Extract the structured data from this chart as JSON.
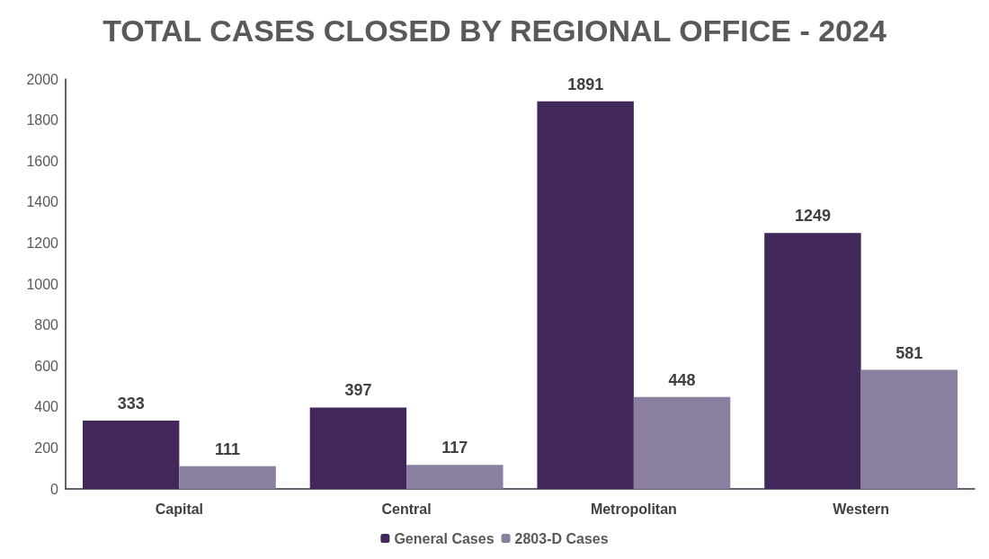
{
  "chart_data": {
    "type": "bar",
    "title": "TOTAL CASES CLOSED BY REGIONAL OFFICE - 2024",
    "categories": [
      "Capital",
      "Central",
      "Metropolitan",
      "Western"
    ],
    "series": [
      {
        "name": "General Cases",
        "color": "#42275a",
        "values": [
          333,
          397,
          1891,
          1249
        ]
      },
      {
        "name": "2803-D Cases",
        "color": "#8b7f9f",
        "values": [
          111,
          117,
          448,
          581
        ]
      }
    ],
    "ylim": [
      0,
      2000
    ],
    "yticks": [
      0,
      200,
      400,
      600,
      800,
      1000,
      1200,
      1400,
      1600,
      1800,
      2000
    ],
    "grid": false,
    "legend": "bottom",
    "data_labels": true
  }
}
